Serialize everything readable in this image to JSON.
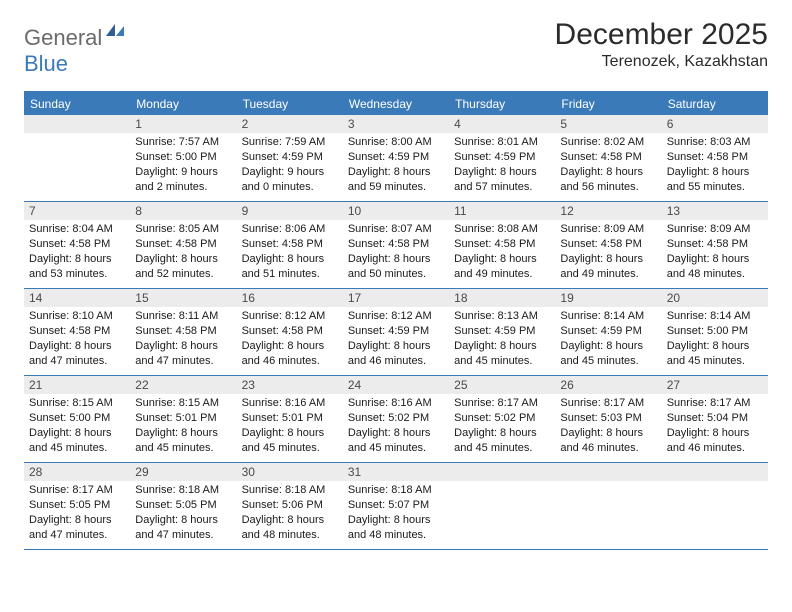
{
  "brand": {
    "general": "General",
    "blue": "Blue"
  },
  "title": "December 2025",
  "location": "Terenozek, Kazakhstan",
  "colors": {
    "accent": "#3a7ab8",
    "header_bg": "#3a7ab8",
    "daynum_bg": "#ececec",
    "text": "#1a1a1a",
    "logo_grey": "#6b6b6b"
  },
  "weekdays": [
    "Sunday",
    "Monday",
    "Tuesday",
    "Wednesday",
    "Thursday",
    "Friday",
    "Saturday"
  ],
  "weeks": [
    [
      {
        "n": "",
        "sr": "",
        "ss": "",
        "dl1": "",
        "dl2": "",
        "empty": true
      },
      {
        "n": "1",
        "sr": "Sunrise: 7:57 AM",
        "ss": "Sunset: 5:00 PM",
        "dl1": "Daylight: 9 hours",
        "dl2": "and 2 minutes."
      },
      {
        "n": "2",
        "sr": "Sunrise: 7:59 AM",
        "ss": "Sunset: 4:59 PM",
        "dl1": "Daylight: 9 hours",
        "dl2": "and 0 minutes."
      },
      {
        "n": "3",
        "sr": "Sunrise: 8:00 AM",
        "ss": "Sunset: 4:59 PM",
        "dl1": "Daylight: 8 hours",
        "dl2": "and 59 minutes."
      },
      {
        "n": "4",
        "sr": "Sunrise: 8:01 AM",
        "ss": "Sunset: 4:59 PM",
        "dl1": "Daylight: 8 hours",
        "dl2": "and 57 minutes."
      },
      {
        "n": "5",
        "sr": "Sunrise: 8:02 AM",
        "ss": "Sunset: 4:58 PM",
        "dl1": "Daylight: 8 hours",
        "dl2": "and 56 minutes."
      },
      {
        "n": "6",
        "sr": "Sunrise: 8:03 AM",
        "ss": "Sunset: 4:58 PM",
        "dl1": "Daylight: 8 hours",
        "dl2": "and 55 minutes."
      }
    ],
    [
      {
        "n": "7",
        "sr": "Sunrise: 8:04 AM",
        "ss": "Sunset: 4:58 PM",
        "dl1": "Daylight: 8 hours",
        "dl2": "and 53 minutes."
      },
      {
        "n": "8",
        "sr": "Sunrise: 8:05 AM",
        "ss": "Sunset: 4:58 PM",
        "dl1": "Daylight: 8 hours",
        "dl2": "and 52 minutes."
      },
      {
        "n": "9",
        "sr": "Sunrise: 8:06 AM",
        "ss": "Sunset: 4:58 PM",
        "dl1": "Daylight: 8 hours",
        "dl2": "and 51 minutes."
      },
      {
        "n": "10",
        "sr": "Sunrise: 8:07 AM",
        "ss": "Sunset: 4:58 PM",
        "dl1": "Daylight: 8 hours",
        "dl2": "and 50 minutes."
      },
      {
        "n": "11",
        "sr": "Sunrise: 8:08 AM",
        "ss": "Sunset: 4:58 PM",
        "dl1": "Daylight: 8 hours",
        "dl2": "and 49 minutes."
      },
      {
        "n": "12",
        "sr": "Sunrise: 8:09 AM",
        "ss": "Sunset: 4:58 PM",
        "dl1": "Daylight: 8 hours",
        "dl2": "and 49 minutes."
      },
      {
        "n": "13",
        "sr": "Sunrise: 8:09 AM",
        "ss": "Sunset: 4:58 PM",
        "dl1": "Daylight: 8 hours",
        "dl2": "and 48 minutes."
      }
    ],
    [
      {
        "n": "14",
        "sr": "Sunrise: 8:10 AM",
        "ss": "Sunset: 4:58 PM",
        "dl1": "Daylight: 8 hours",
        "dl2": "and 47 minutes."
      },
      {
        "n": "15",
        "sr": "Sunrise: 8:11 AM",
        "ss": "Sunset: 4:58 PM",
        "dl1": "Daylight: 8 hours",
        "dl2": "and 47 minutes."
      },
      {
        "n": "16",
        "sr": "Sunrise: 8:12 AM",
        "ss": "Sunset: 4:58 PM",
        "dl1": "Daylight: 8 hours",
        "dl2": "and 46 minutes."
      },
      {
        "n": "17",
        "sr": "Sunrise: 8:12 AM",
        "ss": "Sunset: 4:59 PM",
        "dl1": "Daylight: 8 hours",
        "dl2": "and 46 minutes."
      },
      {
        "n": "18",
        "sr": "Sunrise: 8:13 AM",
        "ss": "Sunset: 4:59 PM",
        "dl1": "Daylight: 8 hours",
        "dl2": "and 45 minutes."
      },
      {
        "n": "19",
        "sr": "Sunrise: 8:14 AM",
        "ss": "Sunset: 4:59 PM",
        "dl1": "Daylight: 8 hours",
        "dl2": "and 45 minutes."
      },
      {
        "n": "20",
        "sr": "Sunrise: 8:14 AM",
        "ss": "Sunset: 5:00 PM",
        "dl1": "Daylight: 8 hours",
        "dl2": "and 45 minutes."
      }
    ],
    [
      {
        "n": "21",
        "sr": "Sunrise: 8:15 AM",
        "ss": "Sunset: 5:00 PM",
        "dl1": "Daylight: 8 hours",
        "dl2": "and 45 minutes."
      },
      {
        "n": "22",
        "sr": "Sunrise: 8:15 AM",
        "ss": "Sunset: 5:01 PM",
        "dl1": "Daylight: 8 hours",
        "dl2": "and 45 minutes."
      },
      {
        "n": "23",
        "sr": "Sunrise: 8:16 AM",
        "ss": "Sunset: 5:01 PM",
        "dl1": "Daylight: 8 hours",
        "dl2": "and 45 minutes."
      },
      {
        "n": "24",
        "sr": "Sunrise: 8:16 AM",
        "ss": "Sunset: 5:02 PM",
        "dl1": "Daylight: 8 hours",
        "dl2": "and 45 minutes."
      },
      {
        "n": "25",
        "sr": "Sunrise: 8:17 AM",
        "ss": "Sunset: 5:02 PM",
        "dl1": "Daylight: 8 hours",
        "dl2": "and 45 minutes."
      },
      {
        "n": "26",
        "sr": "Sunrise: 8:17 AM",
        "ss": "Sunset: 5:03 PM",
        "dl1": "Daylight: 8 hours",
        "dl2": "and 46 minutes."
      },
      {
        "n": "27",
        "sr": "Sunrise: 8:17 AM",
        "ss": "Sunset: 5:04 PM",
        "dl1": "Daylight: 8 hours",
        "dl2": "and 46 minutes."
      }
    ],
    [
      {
        "n": "28",
        "sr": "Sunrise: 8:17 AM",
        "ss": "Sunset: 5:05 PM",
        "dl1": "Daylight: 8 hours",
        "dl2": "and 47 minutes."
      },
      {
        "n": "29",
        "sr": "Sunrise: 8:18 AM",
        "ss": "Sunset: 5:05 PM",
        "dl1": "Daylight: 8 hours",
        "dl2": "and 47 minutes."
      },
      {
        "n": "30",
        "sr": "Sunrise: 8:18 AM",
        "ss": "Sunset: 5:06 PM",
        "dl1": "Daylight: 8 hours",
        "dl2": "and 48 minutes."
      },
      {
        "n": "31",
        "sr": "Sunrise: 8:18 AM",
        "ss": "Sunset: 5:07 PM",
        "dl1": "Daylight: 8 hours",
        "dl2": "and 48 minutes."
      },
      {
        "n": "",
        "sr": "",
        "ss": "",
        "dl1": "",
        "dl2": "",
        "empty": true
      },
      {
        "n": "",
        "sr": "",
        "ss": "",
        "dl1": "",
        "dl2": "",
        "empty": true
      },
      {
        "n": "",
        "sr": "",
        "ss": "",
        "dl1": "",
        "dl2": "",
        "empty": true
      }
    ]
  ]
}
